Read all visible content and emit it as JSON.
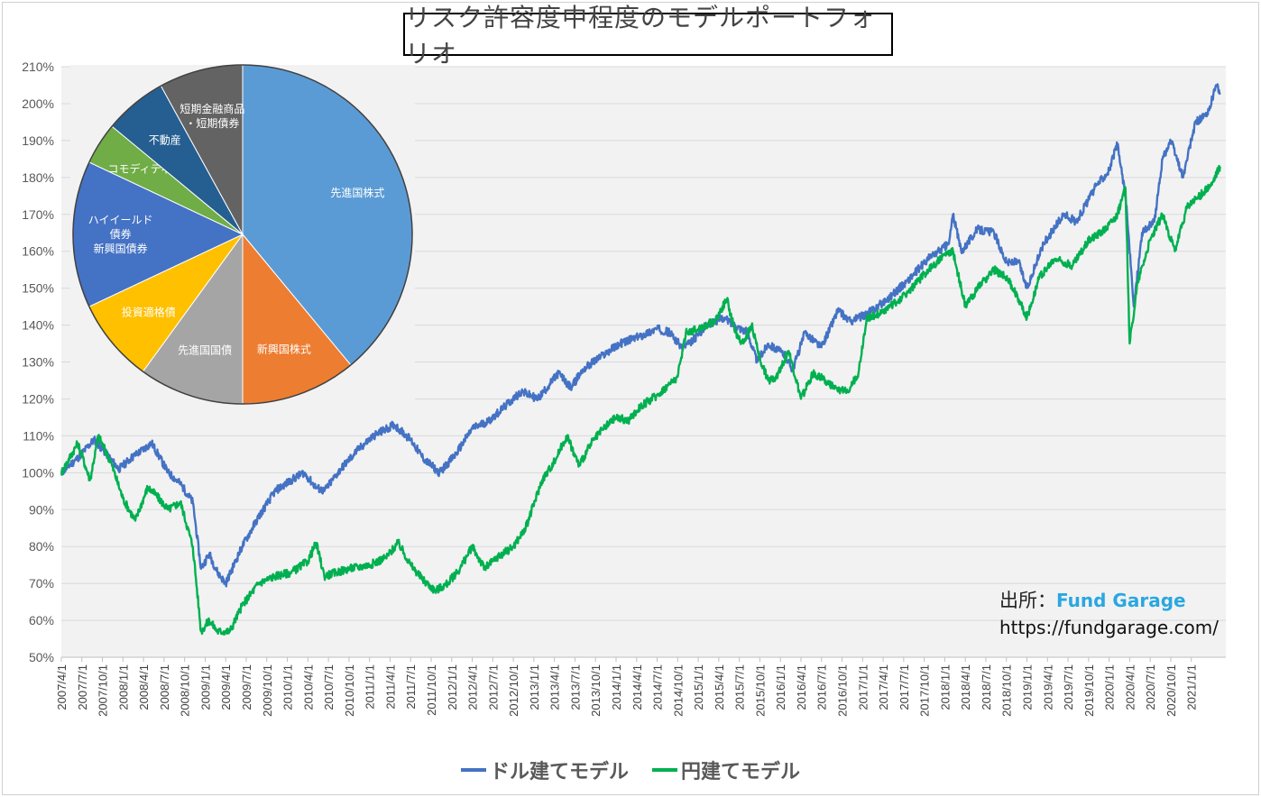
{
  "title": "リスク許容度中程度のモデルポートフォリオ",
  "source": {
    "label": "出所：",
    "brand": "Fund Garage",
    "url": "https://fundgarage.com/"
  },
  "legend": [
    {
      "name": "ドル建てモデル",
      "color": "#4472c4"
    },
    {
      "name": "円建てモデル",
      "color": "#00b050"
    }
  ],
  "chart_data": [
    {
      "type": "line",
      "ylim": [
        50,
        210
      ],
      "y_ticks": [
        "50%",
        "60%",
        "70%",
        "80%",
        "90%",
        "100%",
        "110%",
        "120%",
        "130%",
        "140%",
        "150%",
        "160%",
        "170%",
        "180%",
        "190%",
        "200%",
        "210%"
      ],
      "x_tick_labels": [
        "2007/4/1",
        "2007/7/1",
        "2007/10/1",
        "2008/1/1",
        "2008/4/1",
        "2008/7/1",
        "2008/10/1",
        "2009/1/1",
        "2009/4/1",
        "2009/7/1",
        "2009/10/1",
        "2010/1/1",
        "2010/4/1",
        "2010/7/1",
        "2010/10/1",
        "2011/1/1",
        "2011/4/1",
        "2011/7/1",
        "2011/10/1",
        "2012/1/1",
        "2012/4/1",
        "2012/7/1",
        "2012/10/1",
        "2013/1/1",
        "2013/4/1",
        "2013/7/1",
        "2013/10/1",
        "2014/1/1",
        "2014/4/1",
        "2014/7/1",
        "2014/10/1",
        "2015/1/1",
        "2015/4/1",
        "2015/7/1",
        "2015/10/1",
        "2016/1/1",
        "2016/4/1",
        "2016/7/1",
        "2016/10/1",
        "2017/1/1",
        "2017/4/1",
        "2017/7/1",
        "2017/10/1",
        "2018/1/1",
        "2018/4/1",
        "2018/7/1",
        "2018/10/1",
        "2019/1/1",
        "2019/4/1",
        "2019/7/1",
        "2019/10/1",
        "2020/1/1",
        "2020/4/1",
        "2020/7/1",
        "2020/10/1",
        "2021/1/1"
      ],
      "grid": true,
      "legend_position": "bottom",
      "series": [
        {
          "name": "ドル建てモデル",
          "color": "#4472c4",
          "x": [
            2007.25,
            2007.45,
            2007.65,
            2007.8,
            2007.95,
            2008.1,
            2008.35,
            2008.55,
            2008.7,
            2008.85,
            2008.95,
            2009.05,
            2009.15,
            2009.25,
            2009.45,
            2009.65,
            2009.85,
            2010.05,
            2010.2,
            2010.35,
            2010.45,
            2010.65,
            2010.85,
            2011.05,
            2011.3,
            2011.5,
            2011.65,
            2011.85,
            2012.05,
            2012.25,
            2012.45,
            2012.65,
            2012.85,
            2013.05,
            2013.3,
            2013.45,
            2013.6,
            2013.85,
            2014.05,
            2014.3,
            2014.5,
            2014.65,
            2014.8,
            2014.9,
            2015.1,
            2015.3,
            2015.45,
            2015.6,
            2015.72,
            2015.85,
            2016.05,
            2016.15,
            2016.3,
            2016.5,
            2016.7,
            2016.85,
            2017.05,
            2017.3,
            2017.55,
            2017.8,
            2018.05,
            2018.1,
            2018.2,
            2018.4,
            2018.6,
            2018.75,
            2018.9,
            2019.0,
            2019.2,
            2019.45,
            2019.6,
            2019.85,
            2020.0,
            2020.1,
            2020.2,
            2020.3,
            2020.4,
            2020.55,
            2020.65,
            2020.75,
            2020.9,
            2021.05,
            2021.2,
            2021.3,
            2021.35
          ],
          "y": [
            100,
            104,
            109,
            105,
            101,
            104,
            108,
            100,
            97,
            92,
            74,
            78,
            73,
            70,
            80,
            88,
            95,
            98,
            100,
            96,
            95,
            101,
            106,
            110,
            113,
            109,
            104,
            100,
            105,
            112,
            114,
            118,
            122,
            120,
            127,
            123,
            128,
            132,
            135,
            137,
            139,
            138,
            134,
            135,
            140,
            142,
            140,
            138,
            130,
            135,
            132,
            128,
            138,
            134,
            144,
            141,
            143,
            147,
            152,
            158,
            162,
            170,
            160,
            166,
            165,
            157,
            157,
            150,
            162,
            170,
            168,
            178,
            182,
            189,
            175,
            145,
            165,
            168,
            185,
            190,
            180,
            195,
            197,
            205,
            203
          ]
        },
        {
          "name": "円建てモデル",
          "color": "#00b050",
          "x": [
            2007.25,
            2007.45,
            2007.6,
            2007.7,
            2007.85,
            2008.0,
            2008.15,
            2008.3,
            2008.4,
            2008.55,
            2008.7,
            2008.85,
            2008.95,
            2009.05,
            2009.15,
            2009.3,
            2009.45,
            2009.65,
            2009.85,
            2010.05,
            2010.25,
            2010.35,
            2010.45,
            2010.6,
            2010.75,
            2011.0,
            2011.2,
            2011.35,
            2011.5,
            2011.65,
            2011.8,
            2011.95,
            2012.1,
            2012.25,
            2012.4,
            2012.55,
            2012.75,
            2012.9,
            2013.1,
            2013.25,
            2013.4,
            2013.55,
            2013.7,
            2013.85,
            2014.0,
            2014.15,
            2014.3,
            2014.5,
            2014.65,
            2014.75,
            2014.85,
            2015.0,
            2015.2,
            2015.35,
            2015.45,
            2015.55,
            2015.65,
            2015.75,
            2015.85,
            2015.95,
            2016.1,
            2016.25,
            2016.4,
            2016.55,
            2016.7,
            2016.85,
            2016.95,
            2017.05,
            2017.2,
            2017.4,
            2017.6,
            2017.8,
            2018.0,
            2018.1,
            2018.25,
            2018.4,
            2018.6,
            2018.75,
            2018.9,
            2019.0,
            2019.15,
            2019.35,
            2019.55,
            2019.75,
            2019.95,
            2020.1,
            2020.2,
            2020.25,
            2020.35,
            2020.5,
            2020.65,
            2020.8,
            2020.95,
            2021.1,
            2021.25,
            2021.35
          ],
          "y": [
            100,
            108,
            98,
            110,
            103,
            93,
            87,
            96,
            94,
            90,
            92,
            80,
            57,
            60,
            57,
            57,
            64,
            70,
            72,
            73,
            76,
            81,
            72,
            73,
            74,
            75,
            77,
            81,
            75,
            71,
            68,
            70,
            74,
            80,
            74,
            77,
            80,
            85,
            98,
            103,
            110,
            102,
            108,
            112,
            115,
            114,
            118,
            121,
            124,
            126,
            138,
            139,
            141,
            147,
            138,
            135,
            140,
            131,
            125,
            126,
            133,
            120,
            127,
            125,
            122,
            123,
            127,
            142,
            143,
            146,
            150,
            155,
            159,
            160,
            145,
            150,
            155,
            153,
            147,
            142,
            153,
            158,
            156,
            163,
            166,
            170,
            177,
            135,
            152,
            163,
            170,
            160,
            172,
            175,
            178,
            183
          ]
        }
      ]
    },
    {
      "type": "pie",
      "labels": [
        "先進国株式",
        "新興国株式",
        "先進国国債",
        "投資適格債",
        "ハイイールド債券・新興国債券",
        "コモディティ",
        "不動産",
        "短期金融商品・短期債券"
      ],
      "label_lines": [
        [
          "先進国株式"
        ],
        [
          "新興国株式"
        ],
        [
          "先進国国債"
        ],
        [
          "投資適格債"
        ],
        [
          "ハイイールド",
          "債券",
          "新興国債券"
        ],
        [
          "コモディティ"
        ],
        [
          "不動産"
        ],
        [
          "短期金融商品",
          "・短期債券"
        ]
      ],
      "values": [
        39,
        11,
        10,
        8,
        14,
        4,
        6,
        8
      ],
      "colors": [
        "#5b9bd5",
        "#ed7d31",
        "#a5a5a5",
        "#ffc000",
        "#4472c4",
        "#70ad47",
        "#255e91",
        "#636363"
      ]
    }
  ]
}
